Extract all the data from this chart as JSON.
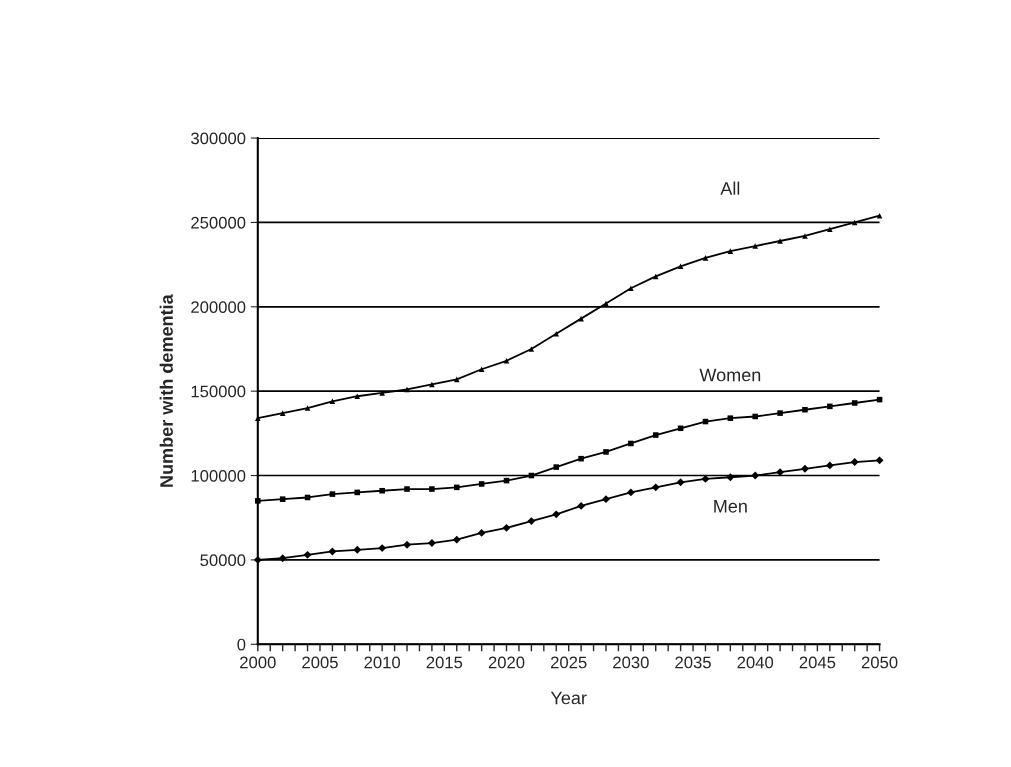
{
  "chart_data": {
    "type": "line",
    "xlabel": "Year",
    "ylabel": "Number with dementia",
    "x": [
      2000,
      2002,
      2004,
      2006,
      2008,
      2010,
      2012,
      2014,
      2016,
      2018,
      2020,
      2022,
      2024,
      2026,
      2028,
      2030,
      2032,
      2034,
      2036,
      2038,
      2040,
      2042,
      2044,
      2046,
      2048,
      2050
    ],
    "series": [
      {
        "name": "All",
        "color": "#000000",
        "marker": "triangle",
        "values": [
          134000,
          137000,
          140000,
          144000,
          147000,
          149000,
          151000,
          154000,
          157000,
          163000,
          168000,
          175000,
          184000,
          193000,
          202000,
          211000,
          218000,
          224000,
          229000,
          233000,
          236000,
          239000,
          242000,
          246000,
          250000,
          254000
        ]
      },
      {
        "name": "Women",
        "color": "#000000",
        "marker": "square",
        "values": [
          85000,
          86000,
          87000,
          89000,
          90000,
          91000,
          92000,
          92000,
          93000,
          95000,
          97000,
          100000,
          105000,
          110000,
          114000,
          119000,
          124000,
          128000,
          132000,
          134000,
          135000,
          137000,
          139000,
          141000,
          143000,
          145000
        ]
      },
      {
        "name": "Men",
        "color": "#000000",
        "marker": "diamond",
        "values": [
          50000,
          51000,
          53000,
          55000,
          56000,
          57000,
          59000,
          60000,
          62000,
          66000,
          69000,
          73000,
          77000,
          82000,
          86000,
          90000,
          93000,
          96000,
          98000,
          99000,
          100000,
          102000,
          104000,
          106000,
          108000,
          109000
        ]
      }
    ],
    "xlim": [
      2000,
      2050
    ],
    "xticks": [
      2000,
      2005,
      2010,
      2015,
      2020,
      2025,
      2030,
      2035,
      2040,
      2045,
      2050
    ],
    "ylim": [
      0,
      300000
    ],
    "yticks": [
      0,
      50000,
      100000,
      150000,
      200000,
      250000,
      300000
    ],
    "grid": "y",
    "legend": false,
    "line_style": "solid"
  }
}
